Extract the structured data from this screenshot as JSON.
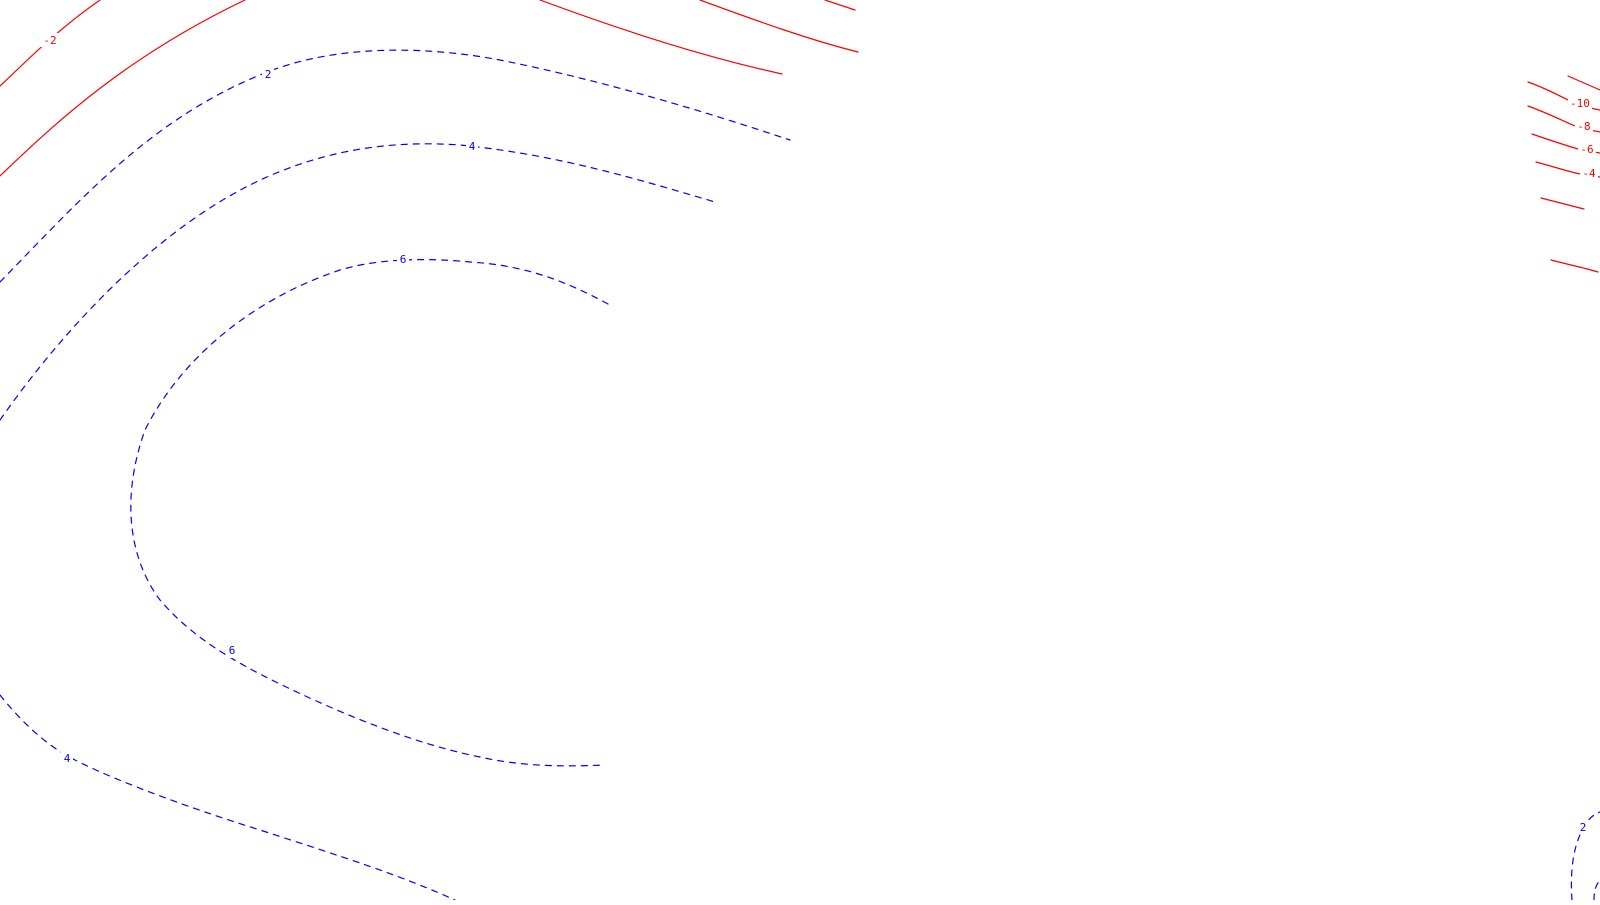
{
  "colors": {
    "negative": "#ff0000",
    "positive": "#0000ff",
    "background": "#ffffff"
  },
  "line_styles": {
    "negative": "solid",
    "positive": "dashed"
  },
  "contour_labels": {
    "neg_2": "-2",
    "pos_2_upper": "2",
    "pos_4_upper": "4",
    "pos_6_upper": "6",
    "pos_6_lower": "6",
    "pos_4_lower": "4",
    "neg_10_right": "-10",
    "neg_8_right": "-8",
    "neg_6_right": "-6",
    "neg_4_right": "-4",
    "pos_2_corner": "2"
  }
}
